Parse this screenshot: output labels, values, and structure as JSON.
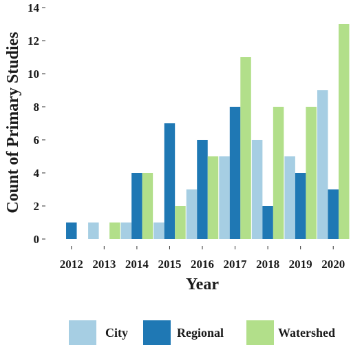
{
  "chart_data": {
    "type": "bar",
    "xlabel": "Year",
    "ylabel": "Count of Primary Studies",
    "ylim": [
      0,
      14
    ],
    "yticks": [
      0,
      2,
      4,
      6,
      8,
      10,
      12,
      14
    ],
    "categories": [
      "2012",
      "2013",
      "2014",
      "2015",
      "2016",
      "2017",
      "2018",
      "2019",
      "2020"
    ],
    "series": [
      {
        "name": "City",
        "color": "#a6cee3",
        "values": [
          0,
          1,
          1,
          1,
          3,
          5,
          6,
          5,
          9
        ]
      },
      {
        "name": "Regional",
        "color": "#1f78b4",
        "values": [
          1,
          0,
          4,
          7,
          6,
          8,
          2,
          4,
          3
        ]
      },
      {
        "name": "Watershed",
        "color": "#b2df8a",
        "values": [
          0,
          1,
          4,
          2,
          5,
          11,
          8,
          8,
          13
        ]
      }
    ],
    "grid": false,
    "legend_position": "bottom"
  }
}
